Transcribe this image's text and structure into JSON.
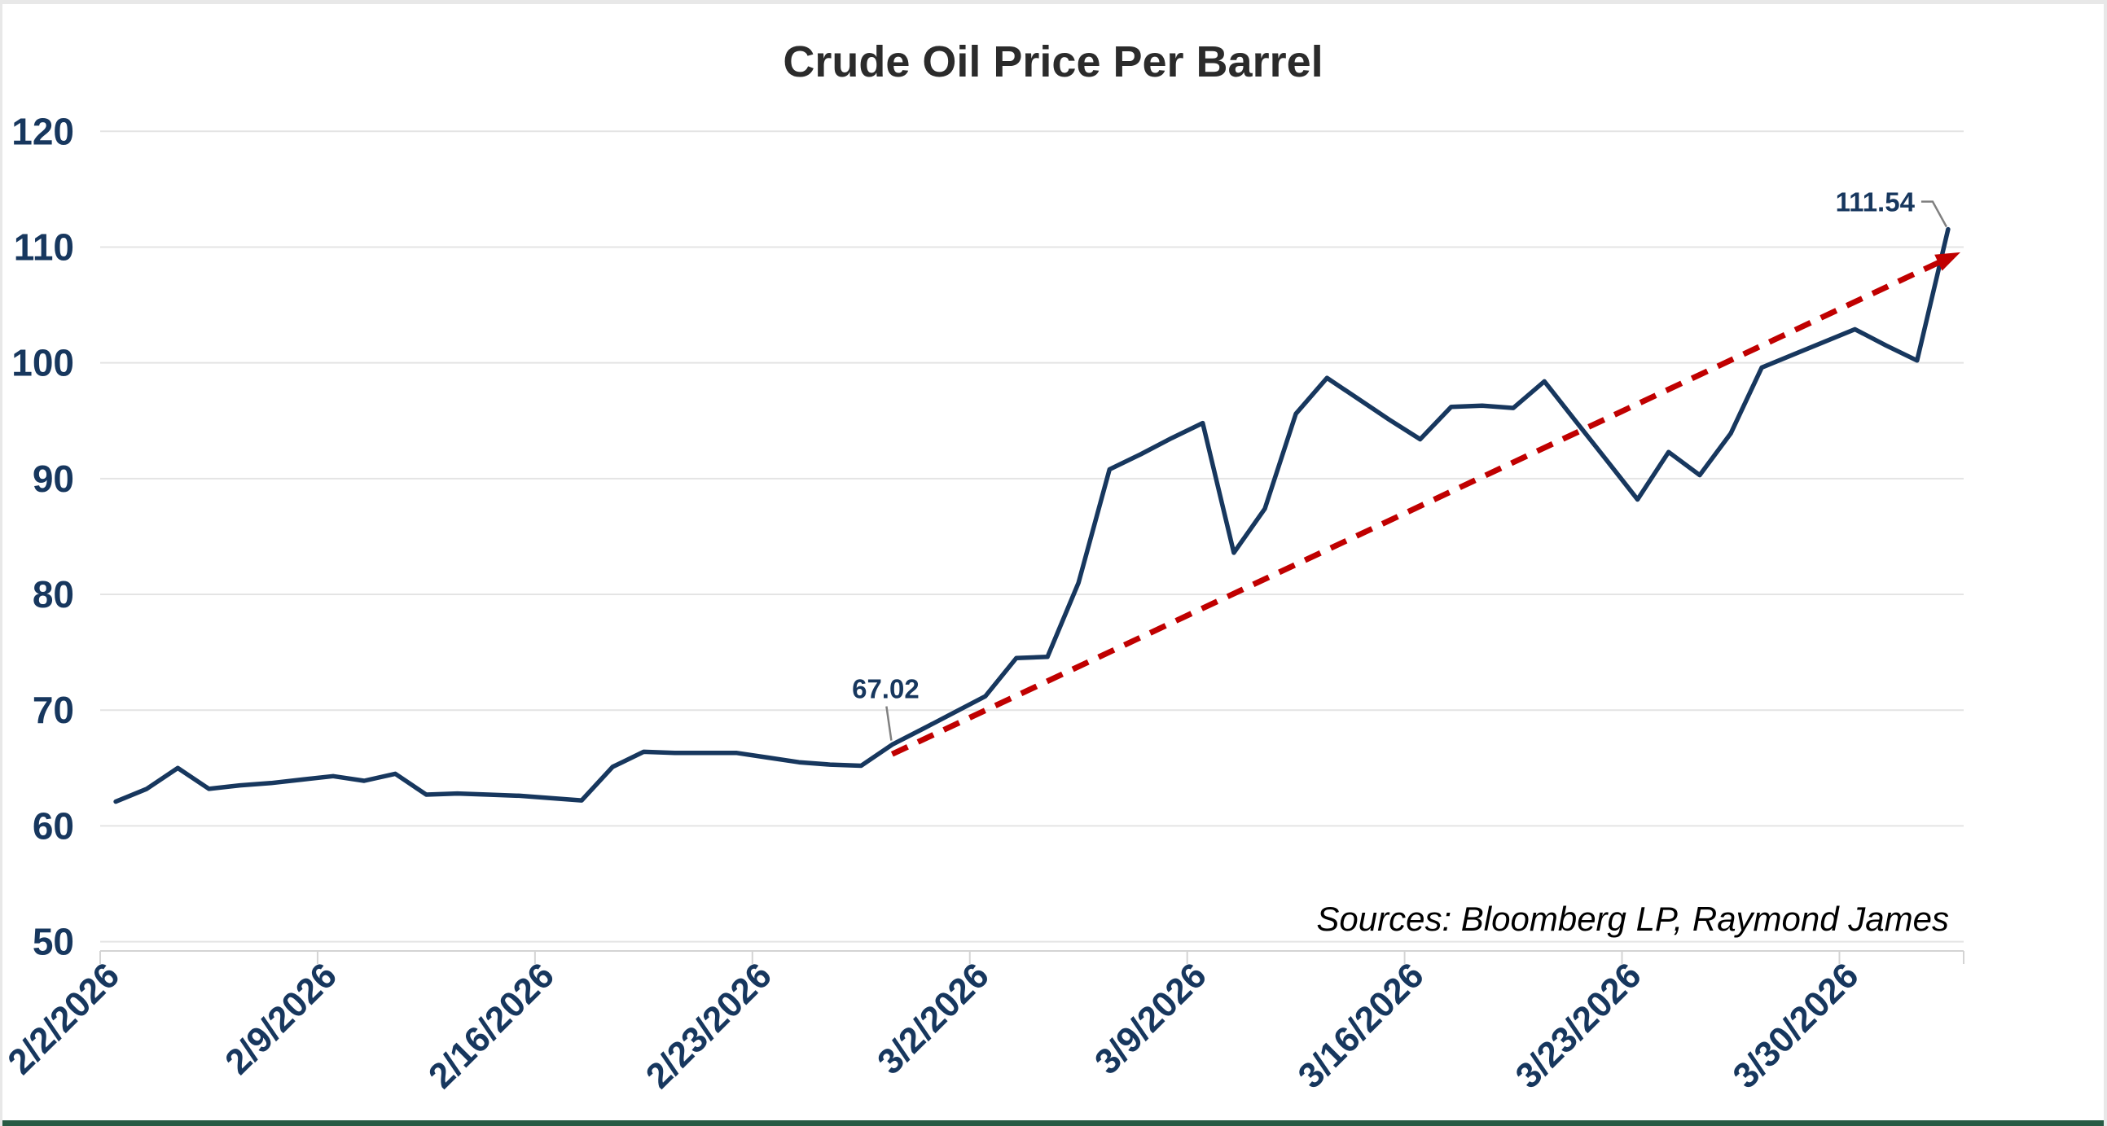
{
  "page": {
    "title": "Crude Oil Price Per Barrel",
    "source_note": "Sources: Bloomberg LP, Raymond James"
  },
  "colors": {
    "series_line": "#17375e",
    "trend_line": "#c00000",
    "axis_text": "#17375e",
    "title_text": "#2b2b2b",
    "gridline": "#e4e4e4",
    "axis_line": "#d4d4d4",
    "callout_line": "#808080",
    "source_text": "#000000",
    "bottom_bar": "#275b44",
    "background": "#ffffff"
  },
  "chart_data": {
    "type": "line",
    "title": "Crude Oil Price Per Barrel",
    "xlabel": "",
    "ylabel": "",
    "ylim": [
      50,
      120
    ],
    "y_ticks": [
      50,
      60,
      70,
      80,
      90,
      100,
      110,
      120
    ],
    "grid": "horizontal",
    "legend": "none",
    "x_label_rotation_deg": -45,
    "x_tick_labels": [
      "2/2/2026",
      "2/9/2026",
      "2/16/2026",
      "2/23/2026",
      "3/2/2026",
      "3/9/2026",
      "3/16/2026",
      "3/23/2026",
      "3/30/2026"
    ],
    "x": [
      "2/2/2026",
      "2/3/2026",
      "2/4/2026",
      "2/5/2026",
      "2/6/2026",
      "2/7/2026",
      "2/8/2026",
      "2/9/2026",
      "2/10/2026",
      "2/11/2026",
      "2/12/2026",
      "2/13/2026",
      "2/14/2026",
      "2/15/2026",
      "2/16/2026",
      "2/17/2026",
      "2/18/2026",
      "2/19/2026",
      "2/20/2026",
      "2/21/2026",
      "2/22/2026",
      "2/23/2026",
      "2/24/2026",
      "2/25/2026",
      "2/26/2026",
      "2/27/2026",
      "2/28/2026",
      "3/1/2026",
      "3/2/2026",
      "3/3/2026",
      "3/4/2026",
      "3/5/2026",
      "3/6/2026",
      "3/7/2026",
      "3/8/2026",
      "3/9/2026",
      "3/10/2026",
      "3/11/2026",
      "3/12/2026",
      "3/13/2026",
      "3/14/2026",
      "3/15/2026",
      "3/16/2026",
      "3/17/2026",
      "3/18/2026",
      "3/19/2026",
      "3/20/2026",
      "3/21/2026",
      "3/22/2026",
      "3/23/2026",
      "3/24/2026",
      "3/25/2026",
      "3/26/2026",
      "3/27/2026",
      "3/28/2026",
      "3/29/2026",
      "3/30/2026",
      "3/31/2026",
      "4/1/2026",
      "4/2/2026"
    ],
    "series": [
      {
        "name": "Crude Oil Price Per Barrel",
        "color": "#17375e",
        "values": [
          62.1,
          63.2,
          65.0,
          63.2,
          63.5,
          63.7,
          64.0,
          64.3,
          63.9,
          64.5,
          62.7,
          62.8,
          62.7,
          62.6,
          62.4,
          62.2,
          65.1,
          66.4,
          66.3,
          66.3,
          66.3,
          65.9,
          65.5,
          65.3,
          65.2,
          67.02,
          68.4,
          69.8,
          71.2,
          74.5,
          74.6,
          81.0,
          90.8,
          92.1,
          93.5,
          94.8,
          83.6,
          87.4,
          95.6,
          98.7,
          96.9,
          95.1,
          93.4,
          96.2,
          96.3,
          96.1,
          98.4,
          95.0,
          91.6,
          88.2,
          92.3,
          90.3,
          93.9,
          99.6,
          100.7,
          101.8,
          102.9,
          101.5,
          100.2,
          111.54
        ]
      }
    ],
    "trendline": {
      "style": "dashed",
      "color": "#c00000",
      "arrow": true,
      "from": {
        "x": "2/27/2026",
        "value": 66.2
      },
      "to": {
        "x": "4/2/2026",
        "value": 109.5
      }
    },
    "annotations": [
      {
        "text": "67.02",
        "x": "2/27/2026",
        "value": 67.02,
        "placement": "above"
      },
      {
        "text": "111.54",
        "x": "4/2/2026",
        "value": 111.54,
        "placement": "left"
      }
    ]
  }
}
